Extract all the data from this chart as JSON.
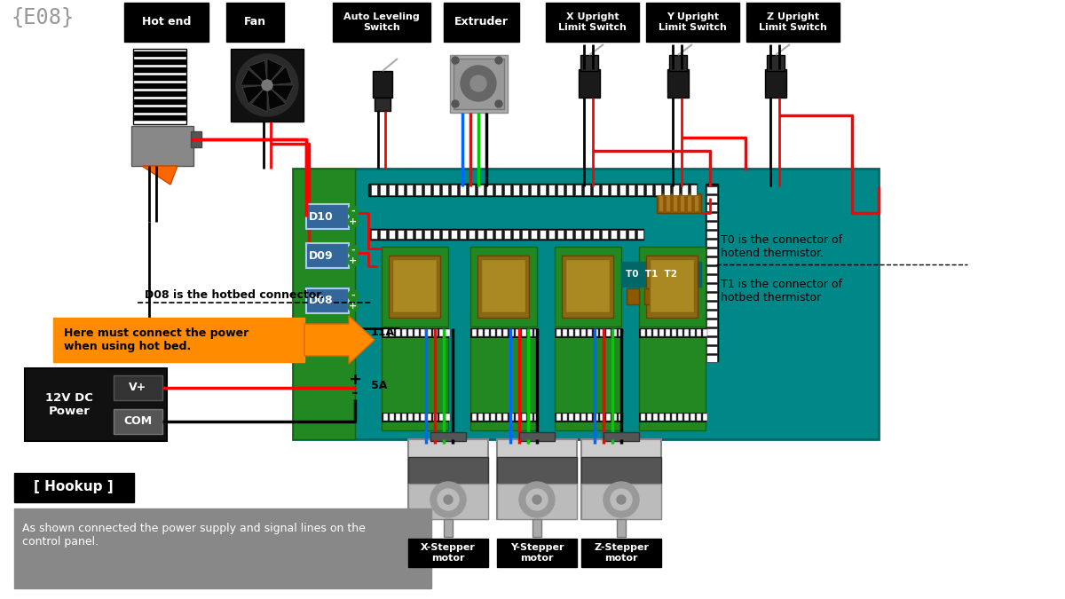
{
  "bg_color": "#ffffff",
  "title": "{E08}",
  "labels": {
    "hot_end": "Hot end",
    "fan": "Fan",
    "auto_leveling": "Auto Leveling\nSwitch",
    "extruder": "Extruder",
    "x_limit": "X Upright\nLimit Switch",
    "y_limit": "Y Upright\nLimit Switch",
    "z_limit": "Z Upright\nLimit Switch",
    "t0_label": "T0 is the connector of\nhotend thermistor.",
    "t1_label": "T1 is the connector of\nhotbed thermistor",
    "d10": "D10",
    "d09": "D09",
    "d08": "D08",
    "11a": "11A",
    "5a": "5A",
    "hotbed_note": "D08 is the hotbed connector.",
    "power_note": "Here must connect the power\nwhen using hot bed.",
    "12v_label": "12V DC\nPower",
    "vplus": "V+",
    "com": "COM",
    "x_stepper": "X-Stepper\nmotor",
    "y_stepper": "Y-Stepper\nmotor",
    "z_stepper": "Z-Stepper\nmotor",
    "hookup": "[ Hookup ]",
    "hookup_desc": "As shown connected the power supply and signal lines on the\ncontrol panel."
  },
  "colors": {
    "red": "#ff0000",
    "black": "#000000",
    "blue": "#0066ff",
    "green": "#00cc00",
    "orange": "#ff8800",
    "teal": "#008888",
    "dark_teal": "#006666",
    "green_board": "#228822",
    "dark_green_board": "#116611",
    "label_bg": "#000000",
    "label_text": "#ffffff",
    "gray_light": "#cccccc",
    "gray_mid": "#999999",
    "gray_dark": "#666666",
    "gray_heatsink": "#888888",
    "brown": "#996633",
    "dark_brown": "#664422",
    "d_label_bg": "#336699",
    "pin_dark": "#222222"
  }
}
